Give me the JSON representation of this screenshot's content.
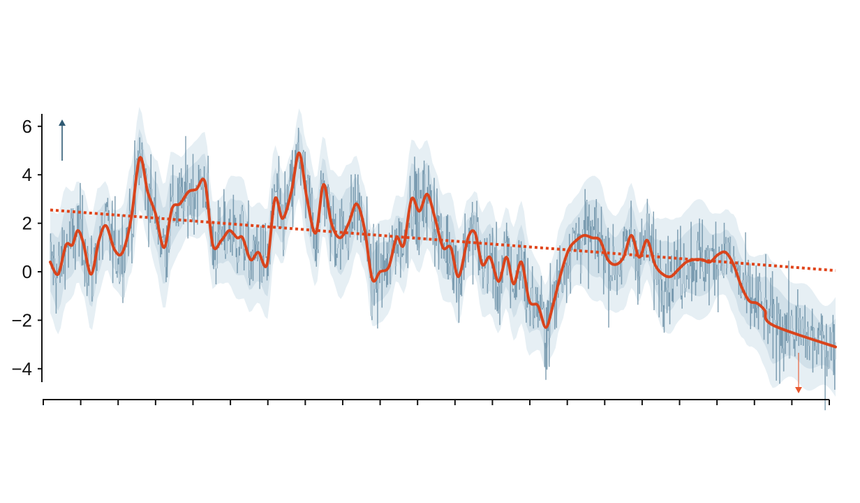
{
  "chart_data": {
    "type": "line",
    "title": "",
    "xlabel": "",
    "ylabel": "",
    "ylim": [
      -4.6,
      6.6
    ],
    "yticks": [
      6,
      4,
      2,
      0,
      -2,
      -4
    ],
    "ytick_labels": [
      "6",
      "4",
      "2",
      "0",
      "−2",
      "−4"
    ],
    "xticks_count": 22,
    "xtick_labels": [],
    "grid": false,
    "legend": null,
    "x_range": [
      0,
      1
    ],
    "series": [
      {
        "name": "raw signal",
        "style": "thin vertical noise lines",
        "color": "#4f7a94",
        "note": "high-frequency noisy signal oscillating roughly ±2 around the smoothed curve, min ≈ -4.6, max ≈ 7.2"
      },
      {
        "name": "confidence band",
        "style": "shaded area",
        "color": "#dbe7ee",
        "half_width": 1.7
      },
      {
        "name": "smoothed",
        "style": "solid thick line",
        "color": "#d9441c",
        "x": [
          0.0,
          0.01,
          0.02,
          0.028,
          0.035,
          0.042,
          0.052,
          0.062,
          0.071,
          0.082,
          0.092,
          0.103,
          0.114,
          0.124,
          0.134,
          0.145,
          0.155,
          0.165,
          0.176,
          0.186,
          0.197,
          0.207,
          0.218,
          0.228,
          0.238,
          0.245,
          0.255,
          0.265,
          0.276,
          0.286,
          0.296,
          0.307,
          0.317,
          0.327,
          0.338,
          0.348,
          0.358,
          0.369,
          0.38,
          0.39,
          0.4,
          0.41,
          0.42,
          0.431,
          0.441,
          0.45,
          0.46,
          0.47,
          0.48,
          0.49,
          0.5,
          0.51,
          0.52,
          0.532,
          0.541,
          0.55,
          0.56,
          0.571,
          0.581,
          0.59,
          0.6,
          0.61,
          0.621,
          0.631,
          0.64,
          0.65,
          0.66,
          0.67,
          0.68,
          0.69,
          0.7,
          0.71,
          0.72,
          0.73,
          0.74,
          0.75,
          0.76,
          0.77,
          0.78,
          0.79,
          0.8,
          0.81,
          0.82,
          0.83,
          0.84,
          0.85,
          0.86,
          0.87,
          0.88,
          0.89,
          0.9,
          0.91,
          0.92,
          0.93,
          0.94,
          0.95,
          0.96,
          0.97,
          0.98,
          0.99,
          1.0
        ],
        "values": [
          0.4,
          -0.1,
          1.1,
          1.1,
          1.7,
          1.2,
          -0.1,
          1.3,
          1.9,
          0.9,
          0.8,
          2.2,
          4.7,
          3.3,
          2.4,
          1.0,
          2.6,
          2.8,
          3.3,
          3.4,
          3.7,
          1.1,
          1.3,
          1.7,
          1.4,
          1.4,
          0.5,
          0.8,
          0.3,
          3.0,
          2.2,
          3.3,
          4.9,
          3.0,
          1.6,
          3.6,
          2.0,
          1.4,
          2.0,
          2.8,
          1.8,
          -0.3,
          0.0,
          0.2,
          1.4,
          1.1,
          3.0,
          2.5,
          3.2,
          2.2,
          1.0,
          1.0,
          -0.2,
          1.4,
          1.6,
          0.3,
          0.6,
          -0.4,
          0.6,
          -0.5,
          0.4,
          -1.2,
          -1.4,
          -2.3,
          -1.4,
          -0.1,
          0.9,
          1.3,
          1.5,
          1.4,
          1.3,
          0.5,
          0.3,
          0.6,
          1.5,
          0.6,
          1.3,
          0.3,
          -0.1,
          -0.2,
          0.1,
          0.4,
          0.5,
          0.5,
          0.4,
          0.7,
          0.8,
          0.3,
          -0.6,
          -1.2,
          -1.3,
          -1.6,
          -2.2,
          -3.1,
          -3.1,
          -3.1,
          -3.1,
          -3.1,
          -3.1,
          -3.1,
          -3.1
        ]
      },
      {
        "name": "linear trend",
        "style": "dotted line",
        "color": "#d9441c",
        "x": [
          0,
          1
        ],
        "values": [
          2.55,
          0.05
        ]
      }
    ],
    "annotations": [
      {
        "type": "arrow",
        "direction": "up",
        "color": "#2f5a73",
        "x": 0.015,
        "y_from": 4.6,
        "y_to": 6.3
      },
      {
        "type": "arrow",
        "direction": "down",
        "color": "#e8572e",
        "x": 0.953,
        "y_from": -3.4,
        "y_to": -5.0
      }
    ]
  },
  "colors": {
    "noise": "#4f7a94",
    "band_outer": "#e6eff4",
    "band_inner": "#c9dbe5",
    "smooth": "#d9441c",
    "trend": "#e0441a",
    "arrow_up": "#2f5a73",
    "arrow_down": "#e8572e",
    "axis": "#111111"
  }
}
